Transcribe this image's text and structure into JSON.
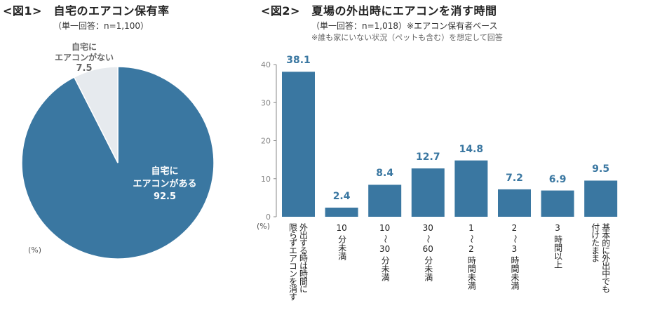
{
  "figure1": {
    "title": "<図1>　自宅のエアコン保有率",
    "subtitle": "（単一回答：n=1,100）",
    "unit": "(%)"
  },
  "figure2": {
    "title": "<図2>　夏場の外出時にエアコンを消す時間",
    "subtitle": "（単一回答：n=1,018）※エアコン保有者ベース",
    "note": "※誰も家にいない状況（ペットも含む）を想定して回答",
    "unit": "(%)"
  },
  "colors": {
    "primary": "#3a77a1",
    "secondary": "#e6eaee",
    "label_blue": "#3a77a1",
    "label_gray": "#666666"
  },
  "chart_data": [
    {
      "type": "pie",
      "title": "自宅のエアコン保有率",
      "slices": [
        {
          "label_lines": [
            "自宅に",
            "エアコンがある"
          ],
          "value": 92.5,
          "value_label": "92.5"
        },
        {
          "label_lines": [
            "自宅に",
            "エアコンがない"
          ],
          "value": 7.5,
          "value_label": "7.5"
        }
      ],
      "start": "top",
      "direction": "clockwise"
    },
    {
      "type": "bar",
      "title": "夏場の外出時にエアコンを消す時間",
      "categories": [
        [
          "外出する時は時間に",
          "限らずエアコンを消す"
        ],
        [
          "10",
          "分未満"
        ],
        [
          "10",
          "〜",
          "30",
          "分未満"
        ],
        [
          "30",
          "〜",
          "60",
          "分未満"
        ],
        [
          "1",
          "〜",
          "2",
          "時間未満"
        ],
        [
          "2",
          "〜",
          "3",
          "時間未満"
        ],
        [
          "3",
          "時間以上"
        ],
        [
          "基本的に外出中でも",
          "付けたまま"
        ]
      ],
      "values": [
        38.1,
        2.4,
        8.4,
        12.7,
        14.8,
        7.2,
        6.9,
        9.5
      ],
      "value_labels": [
        "38.1",
        "2.4",
        "8.4",
        "12.7",
        "14.8",
        "7.2",
        "6.9",
        "9.5"
      ],
      "yticks": [
        0,
        10,
        20,
        30,
        40
      ],
      "ylim": [
        0,
        40
      ],
      "ylabel": "(%)",
      "xlabel": "",
      "grid": false
    }
  ]
}
